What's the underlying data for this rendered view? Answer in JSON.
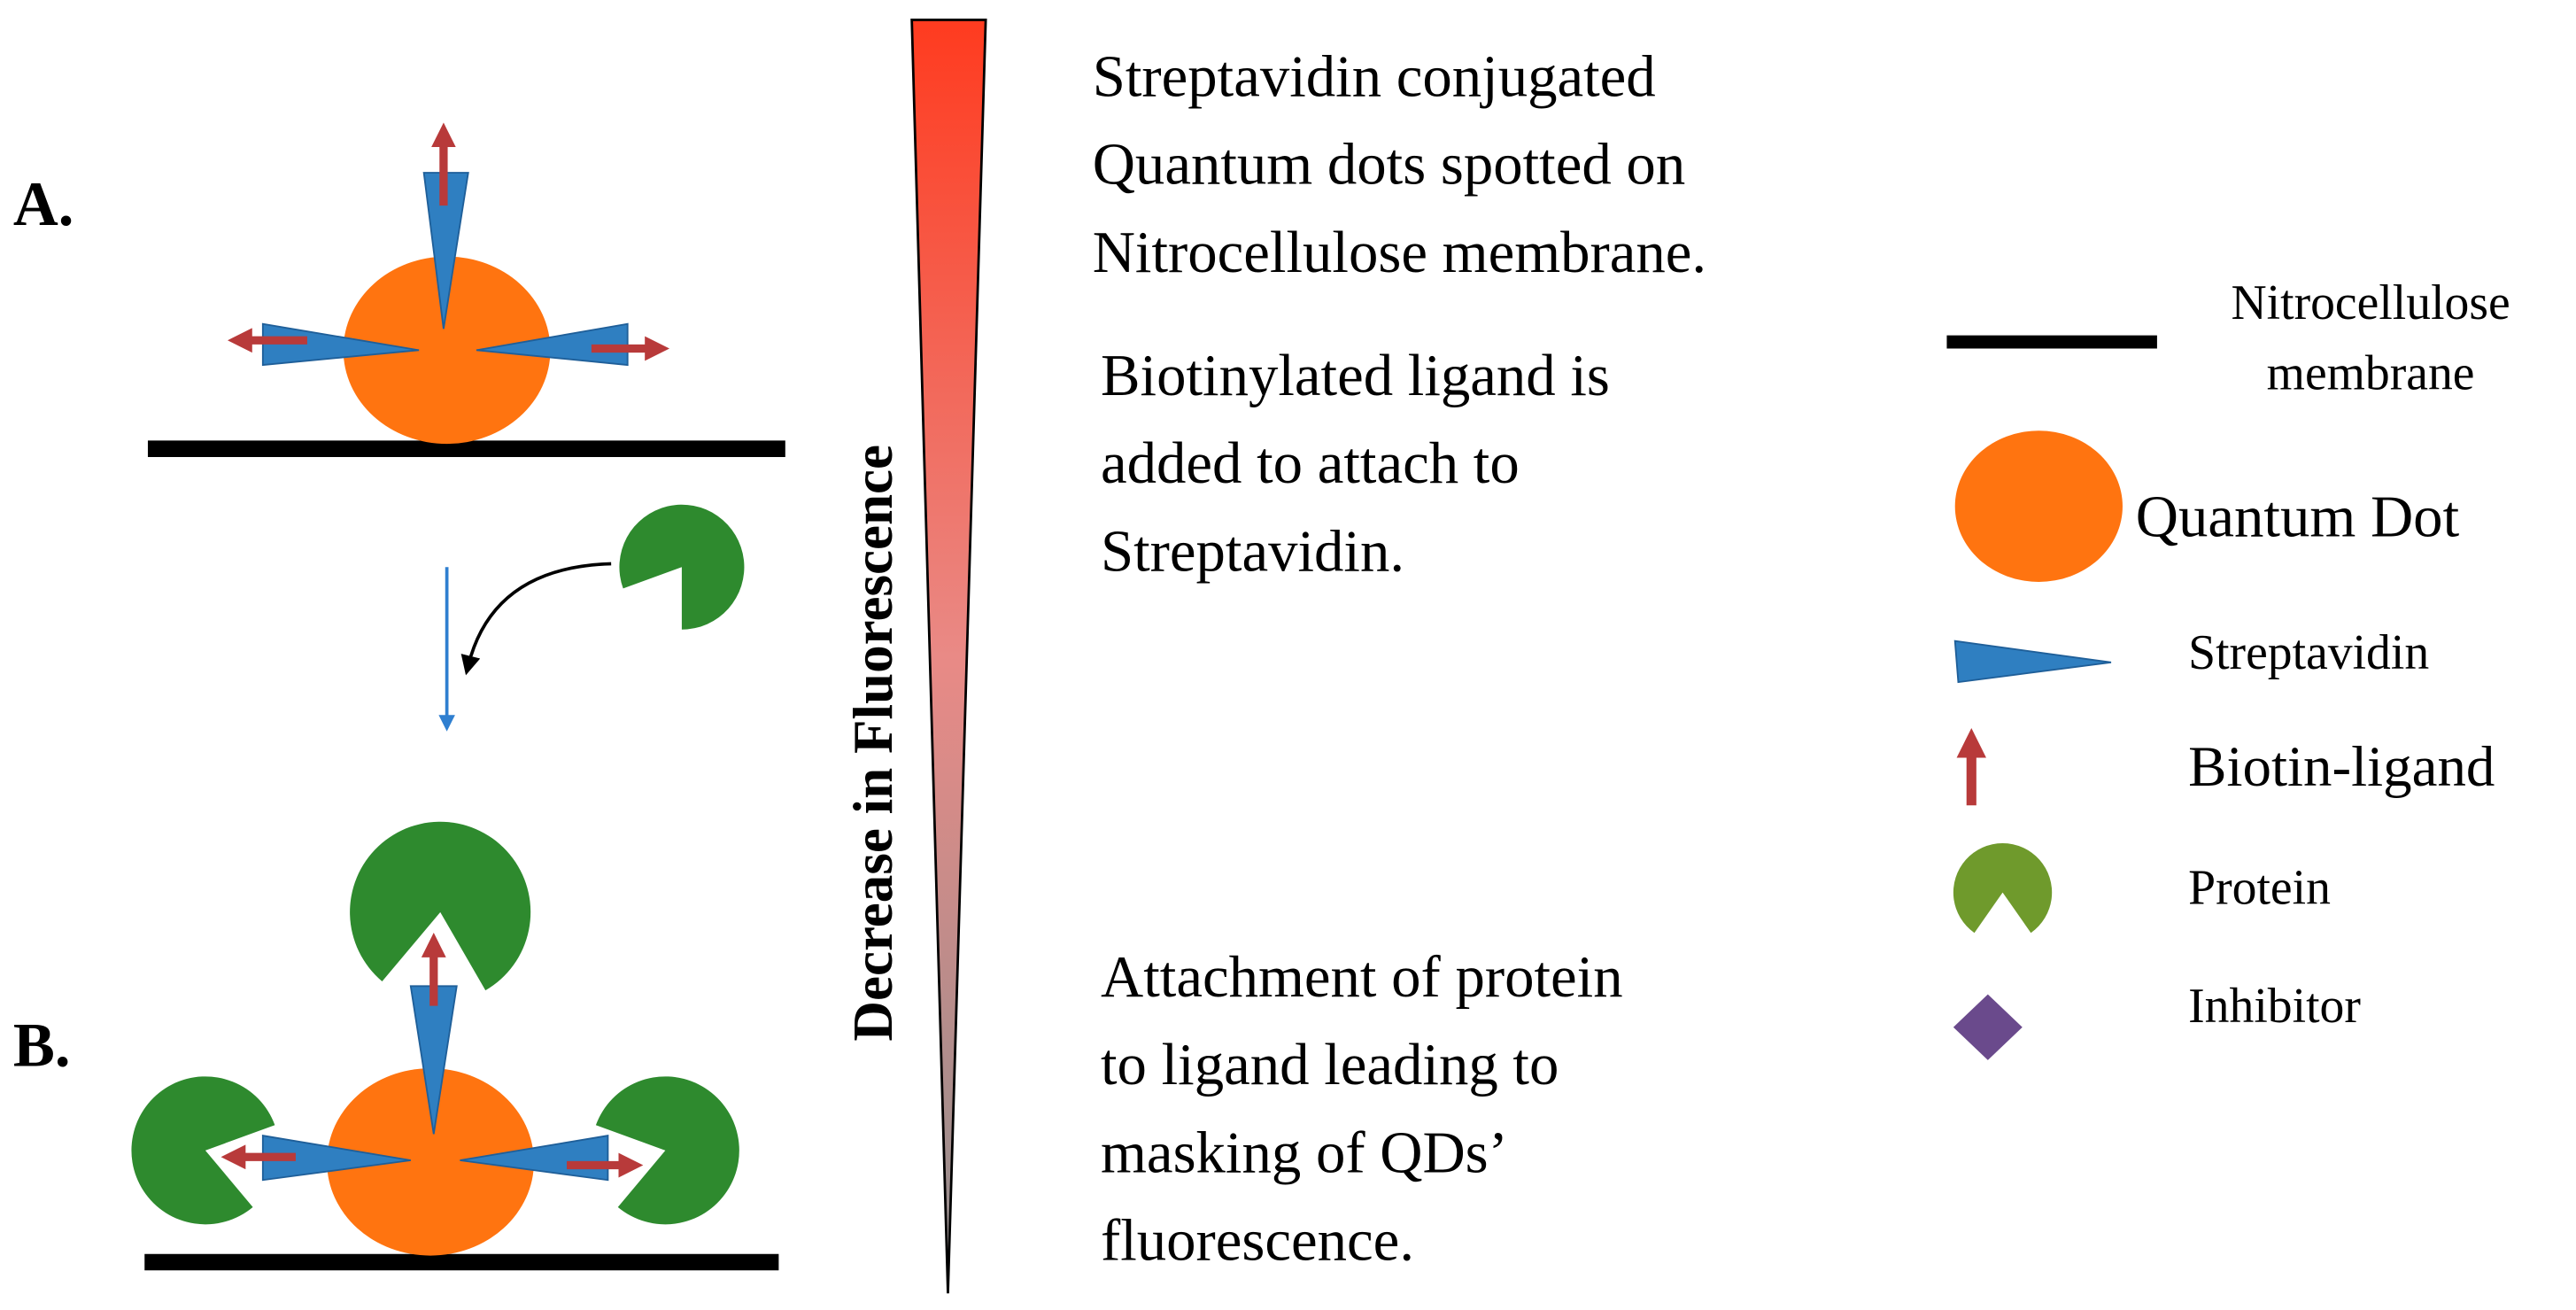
{
  "panels": {
    "a": "A.",
    "b": "B."
  },
  "gradient_label": "Decrease in Fluorescence",
  "steps": [
    [
      "Streptavidin conjugated",
      "Quantum dots spotted on",
      "Nitrocellulose membrane."
    ],
    [
      "Biotinylated ligand is",
      "added to attach to",
      "Streptavidin."
    ],
    [
      "Attachment of protein",
      "to ligand leading to",
      "masking of QDs’",
      "fluorescence."
    ]
  ],
  "legend": {
    "membrane": [
      "Nitrocellulose",
      "membrane"
    ],
    "quantum_dot": "Quantum Dot",
    "streptavidin": "Streptavidin",
    "biotin_ligand": "Biotin-ligand",
    "protein": "Protein",
    "inhibitor": "Inhibitor"
  }
}
